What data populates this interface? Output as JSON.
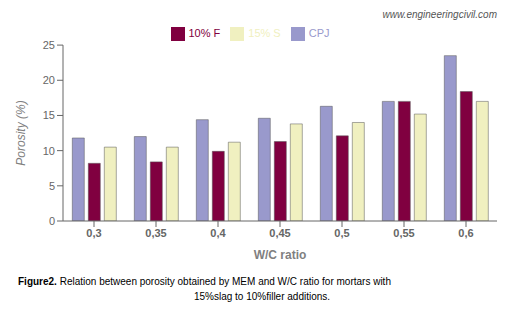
{
  "chart_data": {
    "type": "bar",
    "categories": [
      "0,3",
      "0,35",
      "0,4",
      "0,45",
      "0,5",
      "0,55",
      "0,6"
    ],
    "series": [
      {
        "name": "CPJ",
        "color": "#9999cc",
        "values": [
          11.8,
          12.0,
          14.4,
          14.6,
          16.3,
          17.0,
          23.5
        ]
      },
      {
        "name": "10% F",
        "color": "#800040",
        "values": [
          8.2,
          8.4,
          9.9,
          11.3,
          12.1,
          17.0,
          18.4
        ]
      },
      {
        "name": "15% S",
        "color": "#f0f0c0",
        "values": [
          10.5,
          10.5,
          11.2,
          13.8,
          14.0,
          15.2,
          17.0
        ]
      }
    ],
    "xlabel": "W/C ratio",
    "ylabel": "Porosity (%)",
    "ylim": [
      0,
      25
    ],
    "yticks": [
      0,
      5,
      10,
      15,
      20,
      25
    ],
    "grid": false,
    "legend": "top",
    "annotations": [
      "www.engineeringcivil.com",
      "Figure2.",
      "Relation between porosity obtained by MEM and W/C ratio for mortars with",
      "15%slag to 10%filler additions."
    ]
  }
}
